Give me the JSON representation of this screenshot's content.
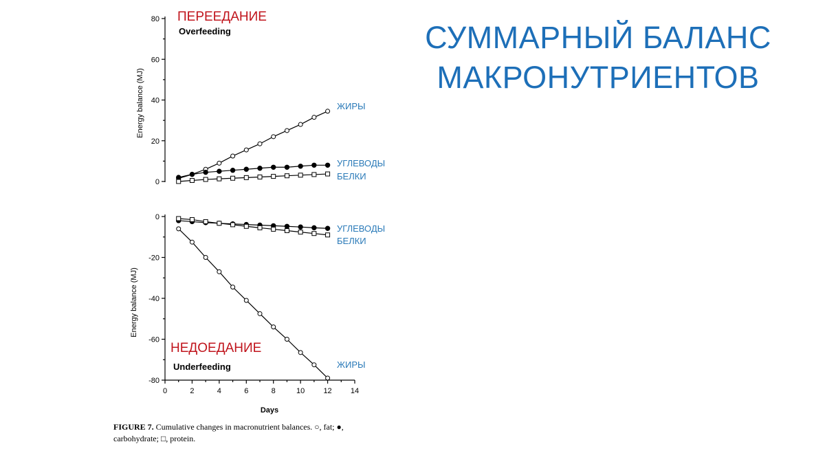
{
  "slide_title_lines": [
    "СУММАРНЫЙ БАЛАНС",
    "МАКРОНУТРИЕНТОВ"
  ],
  "caption": {
    "figure_label": "FIGURE 7.",
    "text_part1": " Cumulative changes in macronutrient balances. ○, fat; ●,",
    "text_part2": "carbohydrate; □, protein."
  },
  "chart_data": [
    {
      "type": "line",
      "panel": "overfeeding",
      "title": "ПЕРЕЕДАНИЕ",
      "subtitle": "Overfeeding",
      "ylabel": "Energy balance (MJ)",
      "ylim": [
        0,
        80
      ],
      "yticks": [
        0,
        20,
        40,
        60,
        80
      ],
      "x": [
        1,
        2,
        3,
        4,
        5,
        6,
        7,
        8,
        9,
        10,
        11,
        12
      ],
      "series": [
        {
          "name": "ЖИРЫ",
          "marker": "open-circle",
          "values": [
            1.5,
            3.5,
            6.0,
            9.0,
            12.5,
            15.5,
            18.5,
            22.0,
            25.0,
            28.0,
            31.5,
            34.5
          ]
        },
        {
          "name": "УГЛЕВОДЫ",
          "marker": "filled-circle",
          "values": [
            2.0,
            3.5,
            4.5,
            5.0,
            5.5,
            6.0,
            6.5,
            7.0,
            7.0,
            7.5,
            8.0,
            8.0
          ]
        },
        {
          "name": "БЕЛКИ",
          "marker": "open-square",
          "values": [
            0.0,
            0.5,
            1.0,
            1.3,
            1.6,
            1.9,
            2.2,
            2.5,
            2.8,
            3.1,
            3.4,
            3.7
          ]
        }
      ]
    },
    {
      "type": "line",
      "panel": "underfeeding",
      "title": "НЕДОЕДАНИЕ",
      "subtitle": "Underfeeding",
      "ylabel": "Energy balance (MJ)",
      "xlabel": "Days",
      "ylim": [
        -80,
        0
      ],
      "yticks": [
        0,
        -20,
        -40,
        -60,
        -80
      ],
      "xlim": [
        0,
        14
      ],
      "xticks": [
        0,
        2,
        4,
        6,
        8,
        10,
        12,
        14
      ],
      "x": [
        1,
        2,
        3,
        4,
        5,
        6,
        7,
        8,
        9,
        10,
        11,
        12
      ],
      "series": [
        {
          "name": "ЖИРЫ",
          "marker": "open-circle",
          "values": [
            -6,
            -12.5,
            -20,
            -27,
            -34.5,
            -41,
            -47.5,
            -54,
            -60,
            -66.5,
            -72.5,
            -79
          ]
        },
        {
          "name": "УГЛЕВОДЫ",
          "marker": "filled-circle",
          "values": [
            -2.0,
            -2.5,
            -3.0,
            -3.3,
            -3.6,
            -3.9,
            -4.2,
            -4.5,
            -4.8,
            -5.1,
            -5.5,
            -5.8
          ]
        },
        {
          "name": "БЕЛКИ",
          "marker": "open-square",
          "values": [
            -1.0,
            -1.5,
            -2.5,
            -3.3,
            -4.0,
            -4.8,
            -5.5,
            -6.2,
            -6.9,
            -7.6,
            -8.3,
            -9.0
          ]
        }
      ]
    }
  ]
}
